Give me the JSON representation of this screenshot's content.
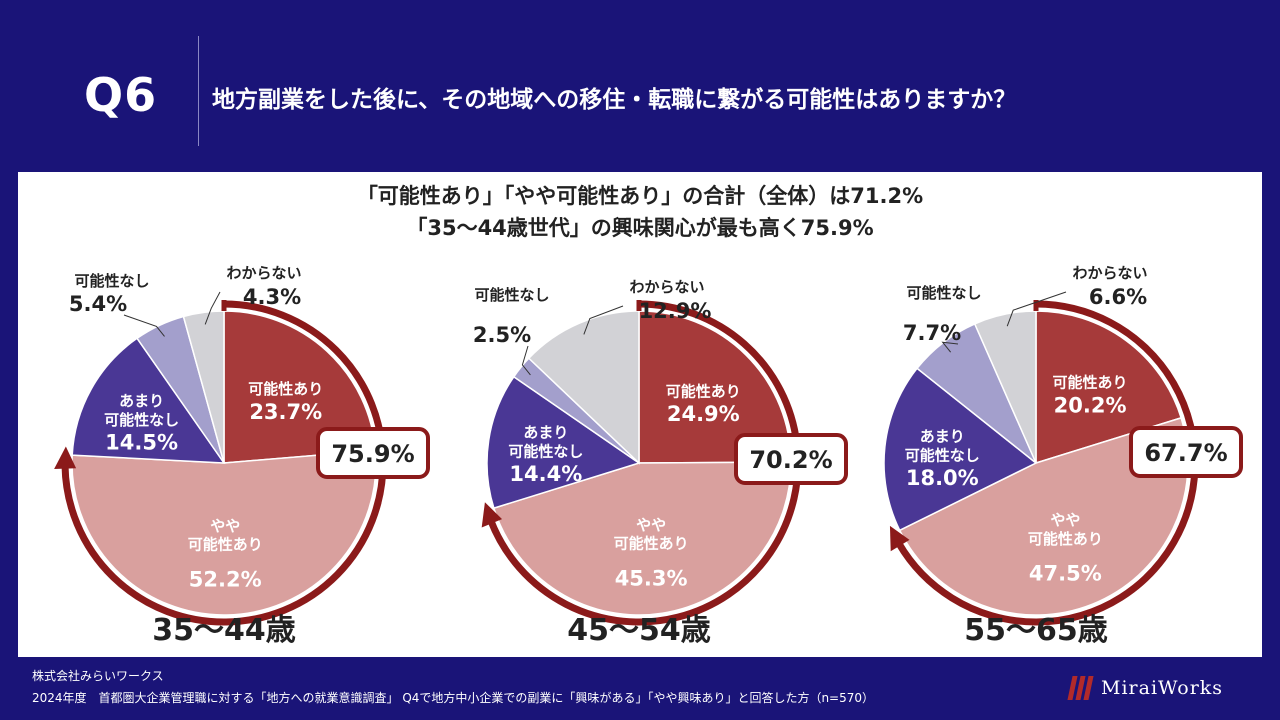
{
  "header": {
    "q_number": "Q6",
    "question": "地方副業をした後に、その地域への移住・転職に繋がる可能性はありますか？"
  },
  "chart_data": [
    {
      "type": "pie",
      "title": "35～44歳",
      "summary_badge": "75.9%",
      "slices": [
        {
          "id": "kanou",
          "label": "可能性あり",
          "value": 23.7,
          "display": "23.7%"
        },
        {
          "id": "yaya",
          "label": "やや\n可能性あり",
          "value": 52.2,
          "display": "52.2%"
        },
        {
          "id": "amari",
          "label": "あまり\n可能性なし",
          "value": 14.5,
          "display": "14.5%"
        },
        {
          "id": "nashi",
          "label": "可能性なし",
          "value": 5.4,
          "display": "5.4%"
        },
        {
          "id": "wakaranai",
          "label": "わからない",
          "value": 4.3,
          "display": "4.3%"
        }
      ]
    },
    {
      "type": "pie",
      "title": "45～54歳",
      "summary_badge": "70.2%",
      "slices": [
        {
          "id": "kanou",
          "label": "可能性あり",
          "value": 24.9,
          "display": "24.9%"
        },
        {
          "id": "yaya",
          "label": "やや\n可能性あり",
          "value": 45.3,
          "display": "45.3%"
        },
        {
          "id": "amari",
          "label": "あまり\n可能性なし",
          "value": 14.4,
          "display": "14.4%"
        },
        {
          "id": "nashi",
          "label": "可能性なし",
          "value": 2.5,
          "display": "2.5%"
        },
        {
          "id": "wakaranai",
          "label": "わからない",
          "value": 12.9,
          "display": "12.9%"
        }
      ]
    },
    {
      "type": "pie",
      "title": "55～65歳",
      "summary_badge": "67.7%",
      "slices": [
        {
          "id": "kanou",
          "label": "可能性あり",
          "value": 20.2,
          "display": "20.2%"
        },
        {
          "id": "yaya",
          "label": "やや\n可能性あり",
          "value": 47.5,
          "display": "47.5%"
        },
        {
          "id": "amari",
          "label": "あまり\n可能性なし",
          "value": 18.0,
          "display": "18.0%"
        },
        {
          "id": "nashi",
          "label": "可能性なし",
          "value": 7.7,
          "display": "7.7%"
        },
        {
          "id": "wakaranai",
          "label": "わからない",
          "value": 6.6,
          "display": "6.6%"
        }
      ]
    }
  ],
  "headline": {
    "line1": "「可能性あり」「やや可能性あり」の合計（全体）は71.2%",
    "line2": "「35～44歳世代」の興味関心が最も高く75.9%"
  },
  "colors": {
    "background": "#1a1478",
    "kanou": "#a63a3a",
    "yaya": "#d9a09e",
    "amari": "#4a3795",
    "nashi": "#a39fcc",
    "wakaranai": "#d2d2d6",
    "arc": "#8b1a1a"
  },
  "footer": {
    "company": "株式会社みらいワークス",
    "note": "2024年度　首都圏大企業管理職に対する「地方への就業意識調査」 Q4で地方中小企業での副業に「興味がある」「やや興味あり」と回答した方（n=570）",
    "logo_text": "MiraiWorks"
  }
}
